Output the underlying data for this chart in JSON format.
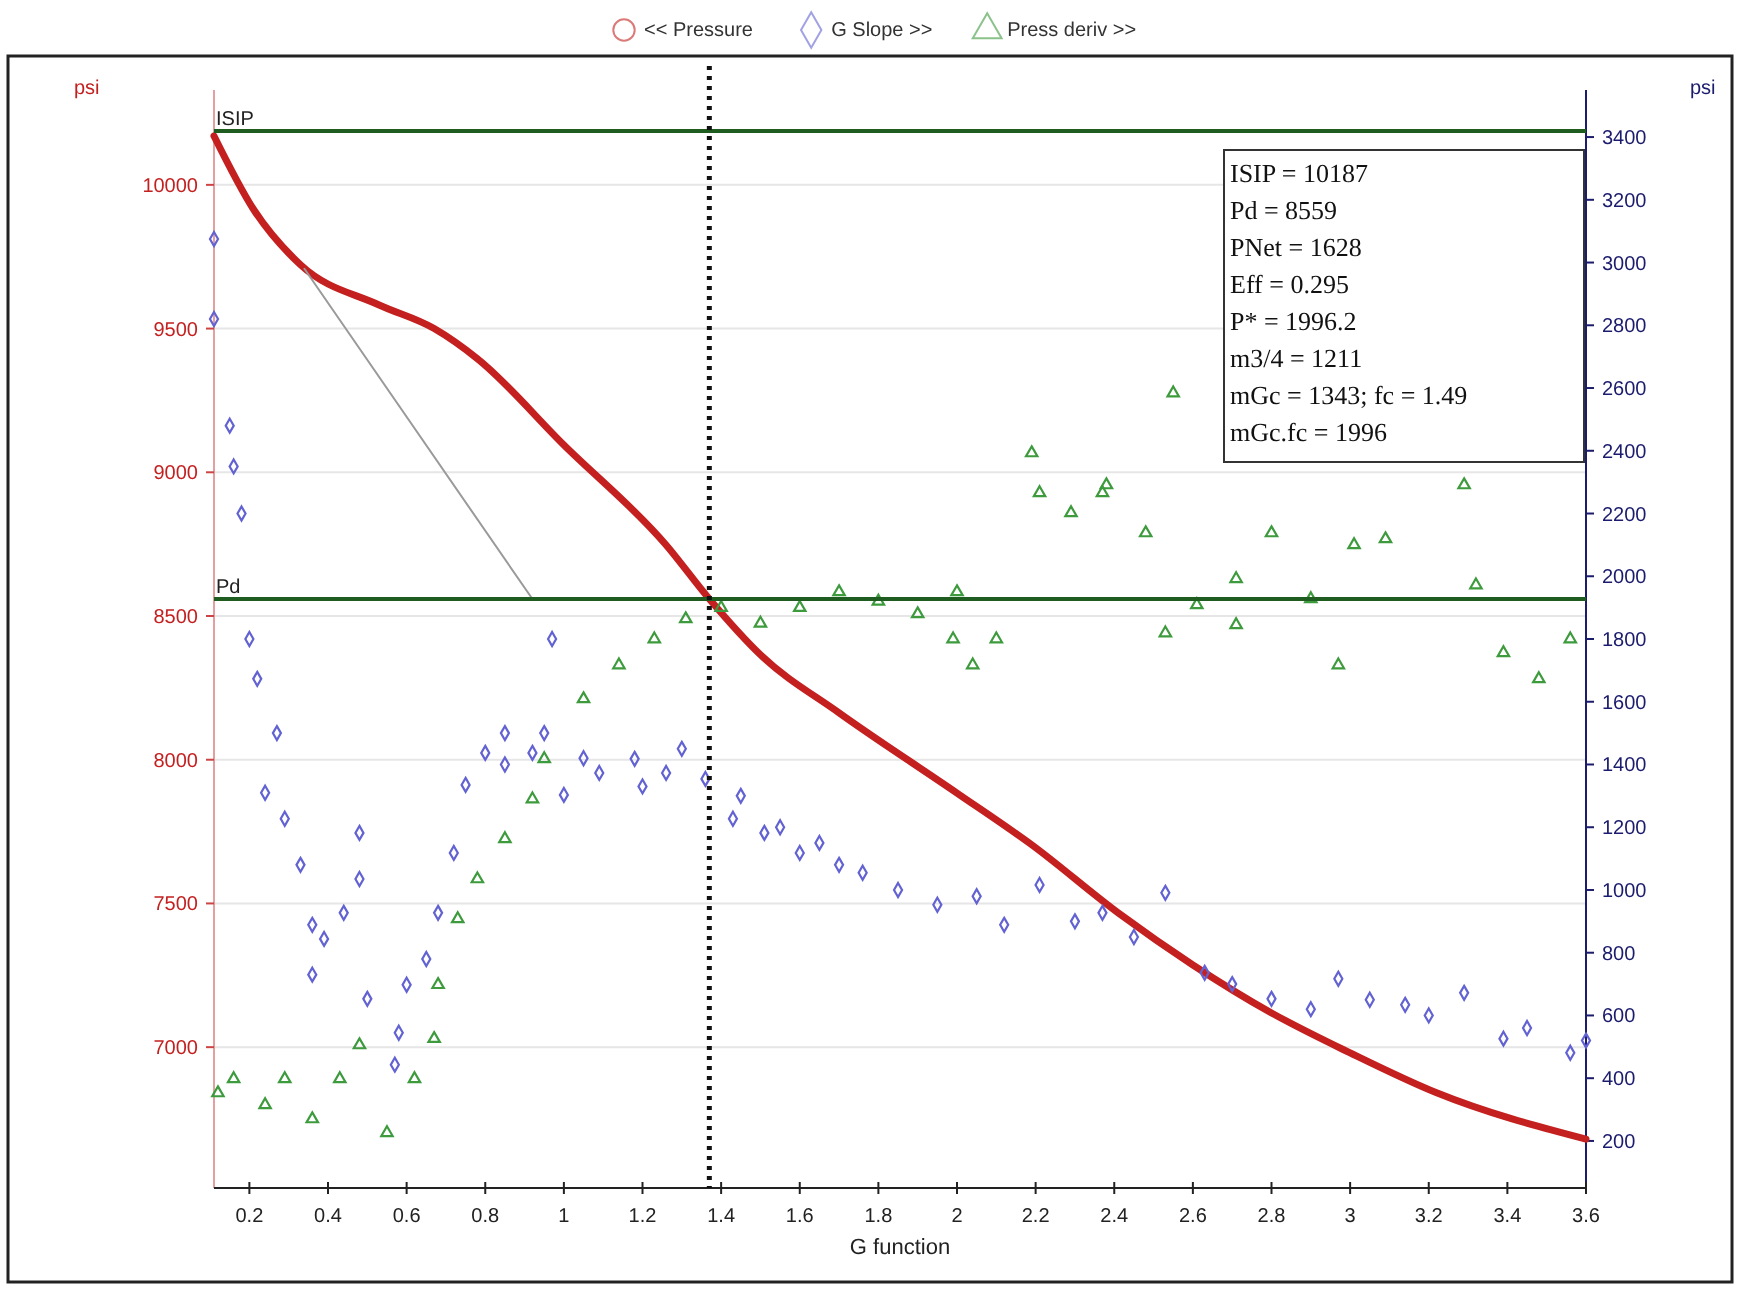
{
  "chart_data": {
    "type": "scatter",
    "xlabel": "G function",
    "ylabel": "psi",
    "y2label": "psi",
    "xlim": [
      0.11,
      3.6
    ],
    "xticks": [
      0.2,
      0.4,
      0.6,
      0.8,
      1,
      1.2,
      1.4,
      1.6,
      1.8,
      2,
      2.2,
      2.4,
      2.6,
      2.8,
      3,
      3.2,
      3.4,
      3.6
    ],
    "ylim": [
      6510,
      10330
    ],
    "yticks": [
      7000,
      7500,
      8000,
      8500,
      9000,
      9500,
      10000
    ],
    "y2lim": [
      50,
      3550
    ],
    "y2ticks": [
      200,
      400,
      600,
      800,
      1000,
      1200,
      1400,
      1600,
      1800,
      2000,
      2200,
      2400,
      2600,
      2800,
      3000,
      3200,
      3400
    ],
    "grid": "y",
    "legend": "top",
    "series": [
      {
        "name": "<< Pressure",
        "type": "line",
        "color": "#c42020",
        "marker": "none",
        "x": [
          0.11,
          0.21,
          0.33,
          0.53,
          0.67,
          0.78,
          1.0,
          1.26,
          1.37,
          1.5,
          1.7,
          2.0,
          2.19,
          2.41,
          2.6,
          2.8,
          3.0,
          3.22,
          3.6
        ],
        "values": [
          10170,
          9916,
          9722,
          9582,
          9500,
          9395,
          9095,
          8747,
          8559,
          8365,
          8163,
          7884,
          7704,
          7467,
          7286,
          7119,
          6980,
          6841,
          6680
        ]
      },
      {
        "name": "G Slope >>",
        "axis": "y2",
        "color": "#6262d2",
        "marker": "diamond",
        "x": [
          0.11,
          0.11,
          0.15,
          0.16,
          0.18,
          0.2,
          0.22,
          0.24,
          0.27,
          0.29,
          0.33,
          0.36,
          0.36,
          0.39,
          0.44,
          0.48,
          0.48,
          0.5,
          0.57,
          0.58,
          0.6,
          0.65,
          0.68,
          0.72,
          0.75,
          0.8,
          0.85,
          0.85,
          0.92,
          0.95,
          0.97,
          1.0,
          1.05,
          1.09,
          1.18,
          1.2,
          1.26,
          1.3,
          1.36,
          1.43,
          1.45,
          1.51,
          1.55,
          1.6,
          1.65,
          1.7,
          1.76,
          1.85,
          1.95,
          2.05,
          2.12,
          2.21,
          2.3,
          2.37,
          2.45,
          2.53,
          2.63,
          2.7,
          2.8,
          2.9,
          2.97,
          3.05,
          3.14,
          3.2,
          3.29,
          3.39,
          3.45,
          3.56,
          3.6
        ],
        "values": [
          3075,
          2820,
          2480,
          2350,
          2200,
          1800,
          1673,
          1310,
          1500,
          1227,
          1080,
          889,
          730,
          844,
          927,
          1182,
          1035,
          653,
          443,
          545,
          698,
          780,
          927,
          1118,
          1335,
          1437,
          1500,
          1400,
          1437,
          1500,
          1800,
          1303,
          1420,
          1373,
          1418,
          1330,
          1373,
          1450,
          1354,
          1227,
          1300,
          1182,
          1200,
          1118,
          1150,
          1080,
          1055,
          1000,
          953,
          980,
          889,
          1016,
          900,
          927,
          850,
          991,
          736,
          700,
          653,
          620,
          717,
          650,
          634,
          600,
          672,
          526,
          560,
          481,
          520
        ]
      },
      {
        "name": "Press deriv >>",
        "axis": "y2",
        "color": "#3d9a3d",
        "marker": "triangle",
        "x": [
          0.12,
          0.16,
          0.24,
          0.29,
          0.36,
          0.43,
          0.48,
          0.55,
          0.62,
          0.67,
          0.68,
          0.73,
          0.78,
          0.85,
          0.92,
          0.95,
          1.05,
          1.14,
          1.23,
          1.31,
          1.4,
          1.5,
          1.6,
          1.7,
          1.8,
          1.9,
          1.99,
          2.0,
          2.04,
          2.1,
          2.19,
          2.21,
          2.29,
          2.37,
          2.38,
          2.48,
          2.53,
          2.55,
          2.61,
          2.71,
          2.71,
          2.8,
          2.9,
          2.97,
          3.01,
          3.09,
          3.29,
          3.32,
          3.39,
          3.48,
          3.56
        ],
        "values": [
          353,
          398,
          315,
          398,
          270,
          398,
          506,
          226,
          398,
          526,
          698,
          908,
          1035,
          1163,
          1290,
          1418,
          1609,
          1717,
          1800,
          1864,
          1900,
          1850,
          1900,
          1950,
          1920,
          1880,
          1800,
          1950,
          1717,
          1800,
          2393,
          2266,
          2202,
          2266,
          2291,
          2138,
          1819,
          2584,
          1909,
          1992,
          1845,
          2138,
          1928,
          1717,
          2100,
          2119,
          2291,
          1972,
          1756,
          1673,
          1800
        ]
      },
      {
        "type": "line",
        "color": "#9a9a9a",
        "marker": "none",
        "x": [
          0.34,
          0.92
        ],
        "values": [
          9708,
          8559
        ]
      }
    ],
    "ref_lines": [
      {
        "axis": "y",
        "value": 10187,
        "label": "ISIP",
        "color": "#1f5c1f"
      },
      {
        "axis": "y",
        "value": 8559,
        "label": "Pd",
        "color": "#1f5c1f"
      },
      {
        "axis": "x",
        "value": 1.37,
        "color": "#111111",
        "line_style": "dotted"
      }
    ],
    "annotations": [
      "ISIP = 10187",
      "Pd = 8559",
      "PNet = 1628",
      "Eff = 0.295",
      "P* = 1996.2",
      "m3/4 = 1211",
      "mGc = 1343; fc = 1.49",
      "mGc.fc = 1996"
    ]
  }
}
